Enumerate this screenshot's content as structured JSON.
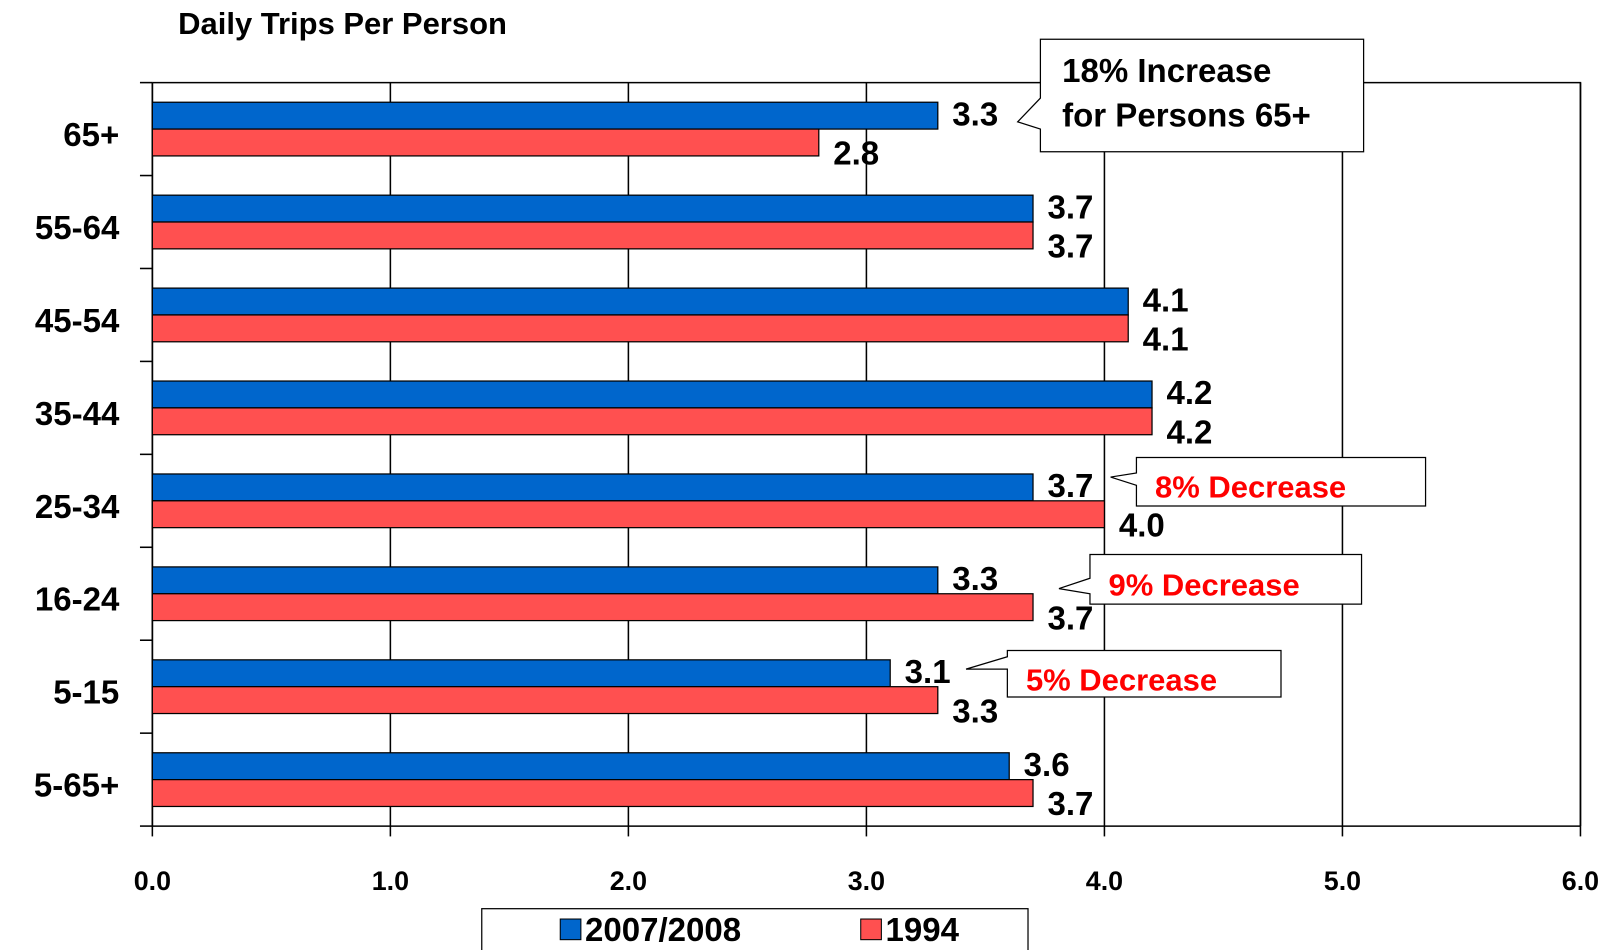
{
  "chart_data": {
    "type": "bar",
    "orientation": "horizontal",
    "title": "Daily Trips Per Person",
    "categories": [
      "65+",
      "55-64",
      "45-54",
      "35-44",
      "25-34",
      "16-24",
      "5-15",
      "5-65+"
    ],
    "series": [
      {
        "name": "2007/2008",
        "color": "#0066cc",
        "values": [
          3.3,
          3.7,
          4.1,
          4.2,
          3.7,
          3.3,
          3.1,
          3.6
        ],
        "value_labels": [
          "3.3",
          "3.7",
          "4.1",
          "4.2",
          "3.7",
          "3.3",
          "3.1",
          "3.6"
        ]
      },
      {
        "name": "1994",
        "color": "#ff5050",
        "values": [
          2.8,
          3.7,
          4.1,
          4.2,
          4.0,
          3.7,
          3.3,
          3.7
        ],
        "value_labels": [
          "2.8",
          "3.7",
          "4.1",
          "4.2",
          "4.0",
          "3.7",
          "3.3",
          "3.7"
        ]
      }
    ],
    "xlim": [
      0,
      6
    ],
    "xticks": [
      {
        "value": 0,
        "label": "0.0"
      },
      {
        "value": 1,
        "label": "1.0"
      },
      {
        "value": 2,
        "label": "2.0"
      },
      {
        "value": 3,
        "label": "3.0"
      },
      {
        "value": 4,
        "label": "4.0"
      },
      {
        "value": 5,
        "label": "5.0"
      },
      {
        "value": 6,
        "label": "6.0"
      }
    ],
    "grid": true,
    "legend": "bottom",
    "annotations": [
      {
        "lines": [
          "18% Increase",
          "for Persons 65+"
        ],
        "color": "#000000"
      },
      {
        "lines": [
          "8% Decrease"
        ],
        "color": "#ff0000"
      },
      {
        "lines": [
          "9% Decrease"
        ],
        "color": "#ff0000"
      },
      {
        "lines": [
          "5% Decrease"
        ],
        "color": "#ff0000"
      }
    ]
  }
}
